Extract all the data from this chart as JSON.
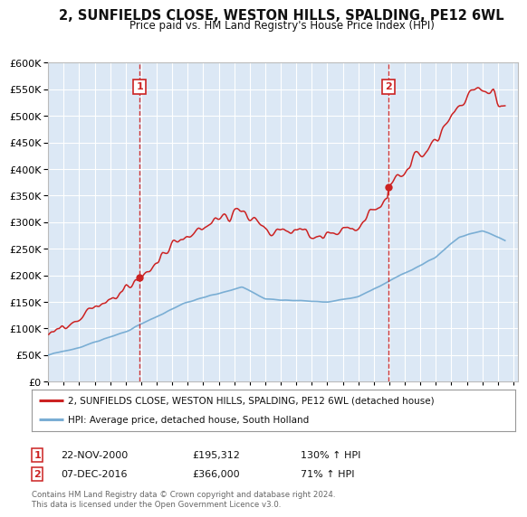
{
  "title": "2, SUNFIELDS CLOSE, WESTON HILLS, SPALDING, PE12 6WL",
  "subtitle": "Price paid vs. HM Land Registry's House Price Index (HPI)",
  "legend_line1": "2, SUNFIELDS CLOSE, WESTON HILLS, SPALDING, PE12 6WL (detached house)",
  "legend_line2": "HPI: Average price, detached house, South Holland",
  "sale1_date": "22-NOV-2000",
  "sale1_price": "£195,312",
  "sale1_hpi": "130% ↑ HPI",
  "sale1_date_num": 2000.896,
  "sale1_value": 195312,
  "sale2_date": "07-DEC-2016",
  "sale2_price": "£366,000",
  "sale2_hpi": "71% ↑ HPI",
  "sale2_date_num": 2016.934,
  "sale2_value": 366000,
  "footer": "Contains HM Land Registry data © Crown copyright and database right 2024.\nThis data is licensed under the Open Government Licence v3.0.",
  "red_color": "#cc2222",
  "blue_color": "#7aaed4",
  "bg_color": "#dce8f5",
  "grid_color": "#ffffff",
  "ylim_max": 600000,
  "xlim_start": 1995.0,
  "xlim_end": 2025.3
}
